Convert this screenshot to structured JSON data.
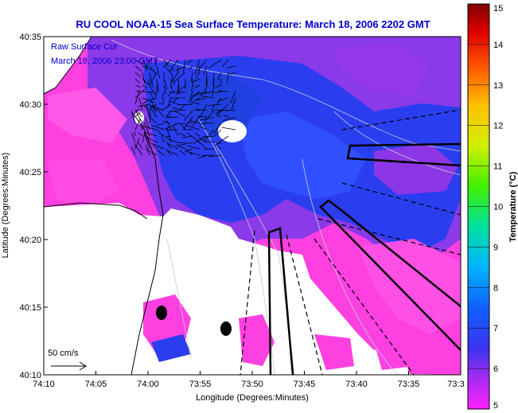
{
  "chart_data": {
    "type": "heatmap",
    "title": "RU COOL  NOAA-15  Sea Surface Temperature:  March 18, 2006 2202 GMT",
    "annotation_line1": "Raw Surface Cur",
    "annotation_line2": "March 18, 2006 23:00 GMT",
    "xlabel": "Longitude (Degrees:Minutes)",
    "ylabel": "Latitude (Degrees:Minutes)",
    "x_ticks": [
      "74:10",
      "74:05",
      "74:00",
      "73:55",
      "73:50",
      "73:45",
      "73:40",
      "73:35",
      "73:3"
    ],
    "y_ticks": [
      "40:35",
      "40:30",
      "40:25",
      "40:20",
      "40:15",
      "40:10"
    ],
    "xlim_minutes": [
      -610,
      -570
    ],
    "ylim_minutes": [
      2410,
      2435
    ],
    "colorbar": {
      "label": "Temperature (°C)",
      "ticks": [
        "15",
        "14",
        "13",
        "12",
        "11",
        "10",
        "9",
        "8",
        "7",
        "6",
        "5"
      ],
      "range": [
        5,
        15
      ]
    },
    "scale_vector_label": "50 cm/s",
    "colors": {
      "warm_water": "#2a3ef0",
      "cool_water": "#ff40e0",
      "mid_water": "#7a32e6",
      "land": "#ffffff"
    }
  }
}
